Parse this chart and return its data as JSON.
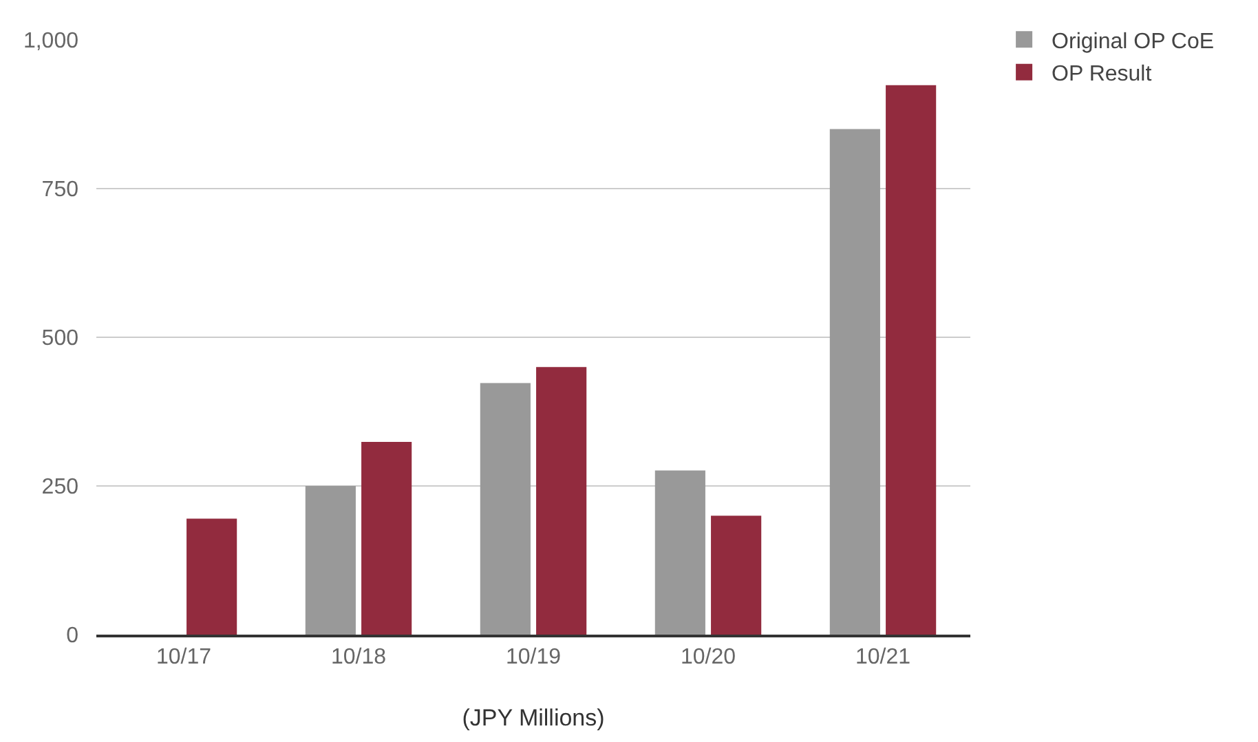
{
  "chart_data": {
    "type": "bar",
    "xlabel": "(JPY Millions)",
    "categories": [
      "10/17",
      "10/18",
      "10/19",
      "10/20",
      "10/21"
    ],
    "series": [
      {
        "name": "Original OP CoE",
        "color": "#999999",
        "values": [
          null,
          250,
          423,
          276,
          850
        ]
      },
      {
        "name": "OP Result",
        "color": "#922b3e",
        "values": [
          195,
          324,
          450,
          200,
          924
        ]
      }
    ],
    "ylim": [
      0,
      1000
    ],
    "yticks": [
      0,
      250,
      500,
      750,
      {
        "value": 1000,
        "label": "1,000"
      }
    ],
    "grid": "y",
    "legend": "top right"
  }
}
